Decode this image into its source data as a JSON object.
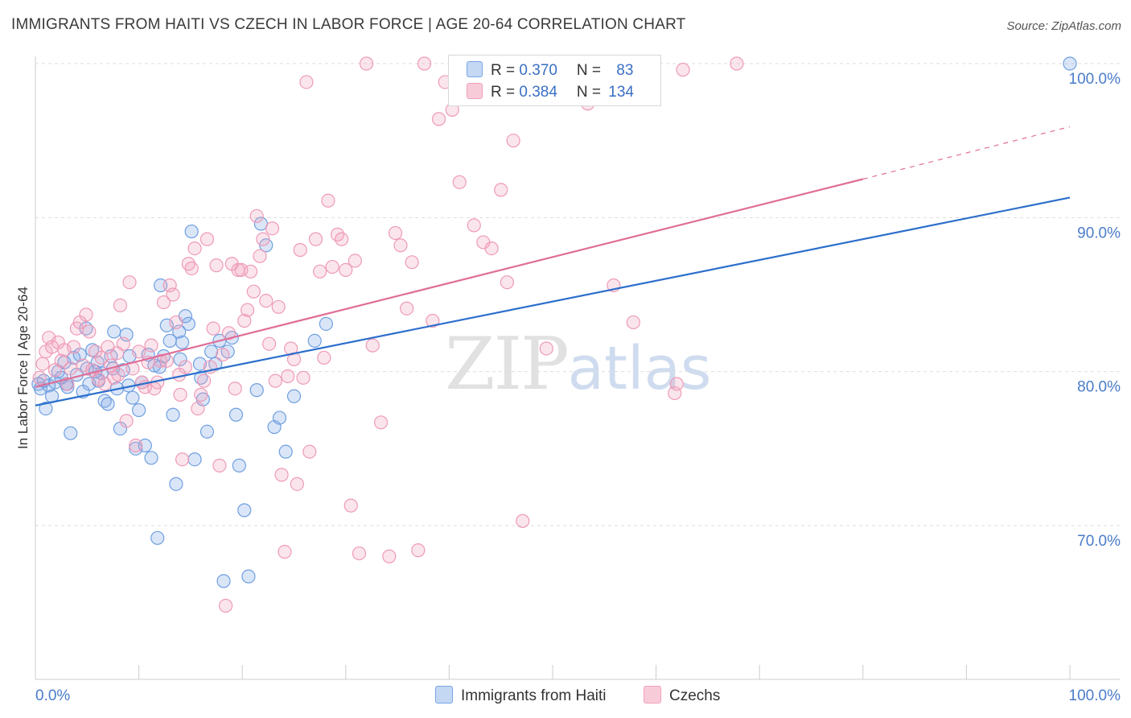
{
  "title": "IMMIGRANTS FROM HAITI VS CZECH IN LABOR FORCE | AGE 20-64 CORRELATION CHART",
  "source": "Source: ZipAtlas.com",
  "watermark": {
    "zip": "ZIP",
    "atlas": "atlas"
  },
  "legend": {
    "rows": [
      {
        "r_label": "R = ",
        "r_value": "0.370",
        "n_label": "N = ",
        "n_value": "83"
      },
      {
        "r_label": "R = ",
        "r_value": "0.384",
        "n_label": "N = ",
        "n_value": "134"
      }
    ]
  },
  "chart_data": {
    "type": "scatter",
    "title": "IMMIGRANTS FROM HAITI VS CZECH IN LABOR FORCE | AGE 20-64 CORRELATION CHART",
    "xlabel": "",
    "ylabel": "In Labor Force | Age 20-64",
    "xlim": [
      0,
      100
    ],
    "ylim": [
      60.5,
      101.5
    ],
    "x_tick_labels": [
      "0.0%",
      "100.0%"
    ],
    "y_ticks": [
      70,
      80,
      90,
      100
    ],
    "y_tick_labels": [
      "70.0%",
      "80.0%",
      "90.0%",
      "100.0%"
    ],
    "grid": "horizontal dashed",
    "legend_position": "top-center",
    "colors": {
      "haiti": "#7aa6e6",
      "czech": "#f0a0bc",
      "haiti_line": "#2c6fcc",
      "czech_line": "#e06e98"
    },
    "series": [
      {
        "name": "Immigrants from Haiti",
        "R": 0.37,
        "N": 83,
        "trend": {
          "x0": 0,
          "y0": 77.8,
          "x1": 100,
          "y1": 91.3
        },
        "points": [
          [
            0.3,
            79.2
          ],
          [
            0.5,
            78.9
          ],
          [
            0.8,
            79.4
          ],
          [
            1.0,
            77.6
          ],
          [
            1.3,
            79.1
          ],
          [
            1.6,
            78.4
          ],
          [
            1.9,
            79.3
          ],
          [
            2.2,
            80.0
          ],
          [
            2.5,
            79.6
          ],
          [
            2.8,
            80.6
          ],
          [
            3.1,
            79.0
          ],
          [
            3.4,
            76.0
          ],
          [
            3.7,
            80.9
          ],
          [
            4.0,
            79.8
          ],
          [
            4.3,
            81.1
          ],
          [
            4.6,
            78.7
          ],
          [
            4.9,
            82.8
          ],
          [
            5.2,
            79.2
          ],
          [
            5.5,
            81.4
          ],
          [
            5.8,
            80.0
          ],
          [
            6.1,
            79.4
          ],
          [
            6.4,
            79.9
          ],
          [
            6.7,
            78.1
          ],
          [
            7.0,
            77.9
          ],
          [
            7.3,
            81.0
          ],
          [
            7.6,
            82.6
          ],
          [
            7.9,
            78.9
          ],
          [
            8.2,
            76.3
          ],
          [
            8.5,
            80.1
          ],
          [
            8.8,
            82.4
          ],
          [
            9.1,
            81.0
          ],
          [
            9.4,
            78.3
          ],
          [
            9.7,
            75.0
          ],
          [
            10.0,
            77.5
          ],
          [
            10.3,
            79.3
          ],
          [
            10.6,
            75.2
          ],
          [
            10.9,
            81.1
          ],
          [
            11.2,
            74.4
          ],
          [
            11.5,
            80.4
          ],
          [
            11.8,
            69.2
          ],
          [
            12.1,
            85.6
          ],
          [
            12.4,
            81.0
          ],
          [
            12.7,
            83.0
          ],
          [
            13.0,
            82.0
          ],
          [
            13.3,
            77.2
          ],
          [
            13.6,
            72.7
          ],
          [
            13.9,
            82.6
          ],
          [
            14.2,
            81.9
          ],
          [
            14.5,
            83.6
          ],
          [
            14.8,
            83.1
          ],
          [
            15.1,
            89.1
          ],
          [
            15.4,
            74.3
          ],
          [
            15.9,
            80.5
          ],
          [
            16.2,
            78.2
          ],
          [
            16.6,
            76.1
          ],
          [
            17.0,
            81.3
          ],
          [
            17.4,
            80.5
          ],
          [
            17.8,
            82.0
          ],
          [
            18.2,
            66.4
          ],
          [
            18.6,
            81.3
          ],
          [
            19.0,
            82.2
          ],
          [
            19.4,
            77.2
          ],
          [
            19.7,
            73.9
          ],
          [
            20.2,
            71.0
          ],
          [
            20.6,
            66.7
          ],
          [
            21.4,
            78.8
          ],
          [
            21.8,
            89.6
          ],
          [
            22.3,
            88.2
          ],
          [
            23.1,
            76.4
          ],
          [
            23.6,
            77.0
          ],
          [
            24.2,
            74.8
          ],
          [
            25.0,
            78.4
          ],
          [
            27.0,
            82.0
          ],
          [
            28.1,
            83.1
          ],
          [
            100.0,
            100.0
          ],
          [
            3.0,
            79.2
          ],
          [
            5.0,
            80.2
          ],
          [
            6.0,
            80.6
          ],
          [
            7.5,
            80.2
          ],
          [
            9.0,
            79.1
          ],
          [
            12.0,
            80.3
          ],
          [
            14.0,
            80.8
          ],
          [
            16.0,
            79.6
          ]
        ]
      },
      {
        "name": "Czechs",
        "R": 0.384,
        "N": 134,
        "trend": {
          "x0": 0,
          "y0": 79.0,
          "x1": 80,
          "y1": 92.5,
          "dash_to_x": 100,
          "dash_to_y": 95.9
        },
        "points": [
          [
            0.4,
            79.6
          ],
          [
            0.7,
            80.5
          ],
          [
            1.0,
            81.3
          ],
          [
            1.3,
            82.2
          ],
          [
            1.6,
            81.6
          ],
          [
            1.9,
            80.1
          ],
          [
            2.2,
            81.9
          ],
          [
            2.5,
            80.7
          ],
          [
            2.8,
            81.4
          ],
          [
            3.1,
            79.2
          ],
          [
            3.4,
            80.2
          ],
          [
            3.7,
            81.6
          ],
          [
            4.0,
            82.8
          ],
          [
            4.3,
            83.2
          ],
          [
            4.6,
            80.4
          ],
          [
            4.9,
            83.7
          ],
          [
            5.2,
            82.6
          ],
          [
            5.5,
            80.1
          ],
          [
            5.8,
            81.3
          ],
          [
            6.1,
            79.5
          ],
          [
            6.4,
            80.9
          ],
          [
            6.7,
            79.2
          ],
          [
            7.0,
            81.6
          ],
          [
            7.3,
            80.4
          ],
          [
            7.6,
            79.6
          ],
          [
            7.9,
            81.2
          ],
          [
            8.2,
            84.3
          ],
          [
            8.5,
            81.8
          ],
          [
            8.8,
            76.8
          ],
          [
            9.1,
            85.8
          ],
          [
            9.4,
            80.2
          ],
          [
            9.7,
            75.2
          ],
          [
            10.0,
            81.3
          ],
          [
            10.3,
            79.3
          ],
          [
            10.6,
            79.0
          ],
          [
            10.9,
            80.6
          ],
          [
            11.2,
            81.7
          ],
          [
            11.5,
            78.9
          ],
          [
            11.8,
            79.3
          ],
          [
            12.1,
            80.7
          ],
          [
            12.4,
            84.5
          ],
          [
            12.7,
            80.7
          ],
          [
            13.0,
            85.6
          ],
          [
            13.3,
            85.0
          ],
          [
            13.6,
            83.2
          ],
          [
            13.9,
            79.8
          ],
          [
            14.2,
            74.3
          ],
          [
            14.5,
            80.3
          ],
          [
            14.8,
            87.0
          ],
          [
            15.1,
            86.7
          ],
          [
            15.4,
            88.0
          ],
          [
            15.7,
            77.6
          ],
          [
            16.0,
            78.5
          ],
          [
            16.3,
            79.4
          ],
          [
            16.6,
            88.6
          ],
          [
            16.9,
            80.3
          ],
          [
            17.2,
            82.8
          ],
          [
            17.5,
            86.9
          ],
          [
            17.8,
            73.9
          ],
          [
            18.1,
            81.1
          ],
          [
            18.4,
            64.8
          ],
          [
            18.7,
            82.5
          ],
          [
            19.0,
            87.0
          ],
          [
            19.3,
            78.9
          ],
          [
            19.6,
            86.6
          ],
          [
            19.9,
            86.6
          ],
          [
            20.2,
            83.3
          ],
          [
            20.5,
            84.0
          ],
          [
            20.8,
            86.5
          ],
          [
            21.1,
            85.2
          ],
          [
            21.4,
            90.1
          ],
          [
            21.7,
            87.5
          ],
          [
            22.0,
            88.6
          ],
          [
            22.3,
            84.6
          ],
          [
            22.6,
            81.8
          ],
          [
            22.9,
            89.3
          ],
          [
            23.2,
            79.4
          ],
          [
            23.5,
            84.2
          ],
          [
            23.8,
            73.3
          ],
          [
            24.1,
            68.3
          ],
          [
            24.4,
            79.7
          ],
          [
            24.7,
            81.5
          ],
          [
            25.0,
            80.8
          ],
          [
            25.3,
            72.7
          ],
          [
            25.6,
            87.9
          ],
          [
            25.9,
            79.6
          ],
          [
            26.2,
            98.8
          ],
          [
            26.5,
            74.8
          ],
          [
            27.1,
            88.6
          ],
          [
            27.5,
            86.5
          ],
          [
            27.9,
            80.9
          ],
          [
            28.3,
            91.1
          ],
          [
            28.7,
            86.8
          ],
          [
            29.2,
            88.9
          ],
          [
            29.6,
            88.6
          ],
          [
            30.0,
            86.6
          ],
          [
            30.5,
            71.3
          ],
          [
            30.9,
            87.2
          ],
          [
            31.3,
            68.2
          ],
          [
            32.0,
            100.0
          ],
          [
            32.6,
            81.7
          ],
          [
            33.4,
            76.7
          ],
          [
            34.2,
            68.0
          ],
          [
            34.8,
            89.0
          ],
          [
            35.3,
            88.2
          ],
          [
            35.9,
            84.1
          ],
          [
            36.4,
            87.1
          ],
          [
            37.0,
            68.4
          ],
          [
            37.6,
            100.0
          ],
          [
            38.4,
            83.3
          ],
          [
            39.0,
            96.4
          ],
          [
            39.6,
            98.8
          ],
          [
            40.3,
            97.0
          ],
          [
            41.0,
            92.3
          ],
          [
            41.8,
            99.0
          ],
          [
            42.4,
            89.5
          ],
          [
            43.3,
            88.4
          ],
          [
            44.1,
            88.0
          ],
          [
            45.0,
            91.8
          ],
          [
            45.6,
            85.8
          ],
          [
            46.2,
            95.0
          ],
          [
            47.1,
            70.3
          ],
          [
            49.4,
            81.5
          ],
          [
            51.4,
            100.0
          ],
          [
            53.4,
            97.4
          ],
          [
            55.9,
            85.6
          ],
          [
            57.8,
            83.2
          ],
          [
            61.8,
            78.6
          ],
          [
            62.0,
            79.2
          ],
          [
            62.6,
            99.6
          ],
          [
            67.8,
            100.0
          ],
          [
            8.0,
            79.8
          ],
          [
            14.0,
            78.5
          ]
        ]
      }
    ]
  }
}
